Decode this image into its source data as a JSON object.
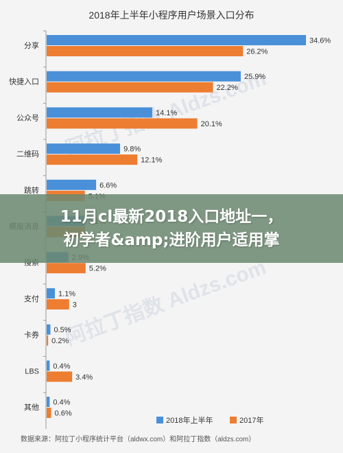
{
  "chart_data": {
    "type": "bar",
    "orientation": "horizontal",
    "title": "2018年上半年小程序用户场景入口分布",
    "categories": [
      "分享",
      "快捷入口",
      "公众号",
      "二维码",
      "跳转",
      "模版消息",
      "搜索",
      "支付",
      "卡券",
      "LBS",
      "其他"
    ],
    "series": [
      {
        "name": "2018年上半年",
        "color": "#4a90d9",
        "values": [
          34.6,
          25.9,
          14.1,
          9.8,
          6.6,
          5.1,
          2.9,
          1.1,
          0.5,
          0.4,
          0.4
        ],
        "labels": [
          "34.6%",
          "25.9%",
          "14.1%",
          "9.8%",
          "6.6%",
          "5.1%",
          "2.9%",
          "1.1%",
          "0.5%",
          "0.4%",
          "0.4%"
        ]
      },
      {
        "name": "2017年",
        "color": "#ed7d31",
        "values": [
          26.2,
          22.2,
          20.1,
          12.1,
          5.1,
          5.1,
          5.2,
          3,
          0.2,
          3.4,
          0.6
        ],
        "labels": [
          "26.2%",
          "22.2%",
          "20.1%",
          "12.1%",
          "5.1%",
          "",
          "5.2%",
          "3",
          "0.2%",
          "3.4%",
          "0.6%"
        ]
      }
    ],
    "xlim": [
      0,
      36
    ],
    "legend_position": "bottom",
    "grid": false,
    "watermark": "阿拉丁指数 Aldzs.com",
    "source": "数据来源：阿拉丁小程序统计平台（aldwx.com）和阿拉丁指数（aldzs.com）"
  },
  "overlay": {
    "line1": "11月cl最新2018入口地址一，",
    "line2": "初学者&amp;进阶用户适用掌"
  }
}
